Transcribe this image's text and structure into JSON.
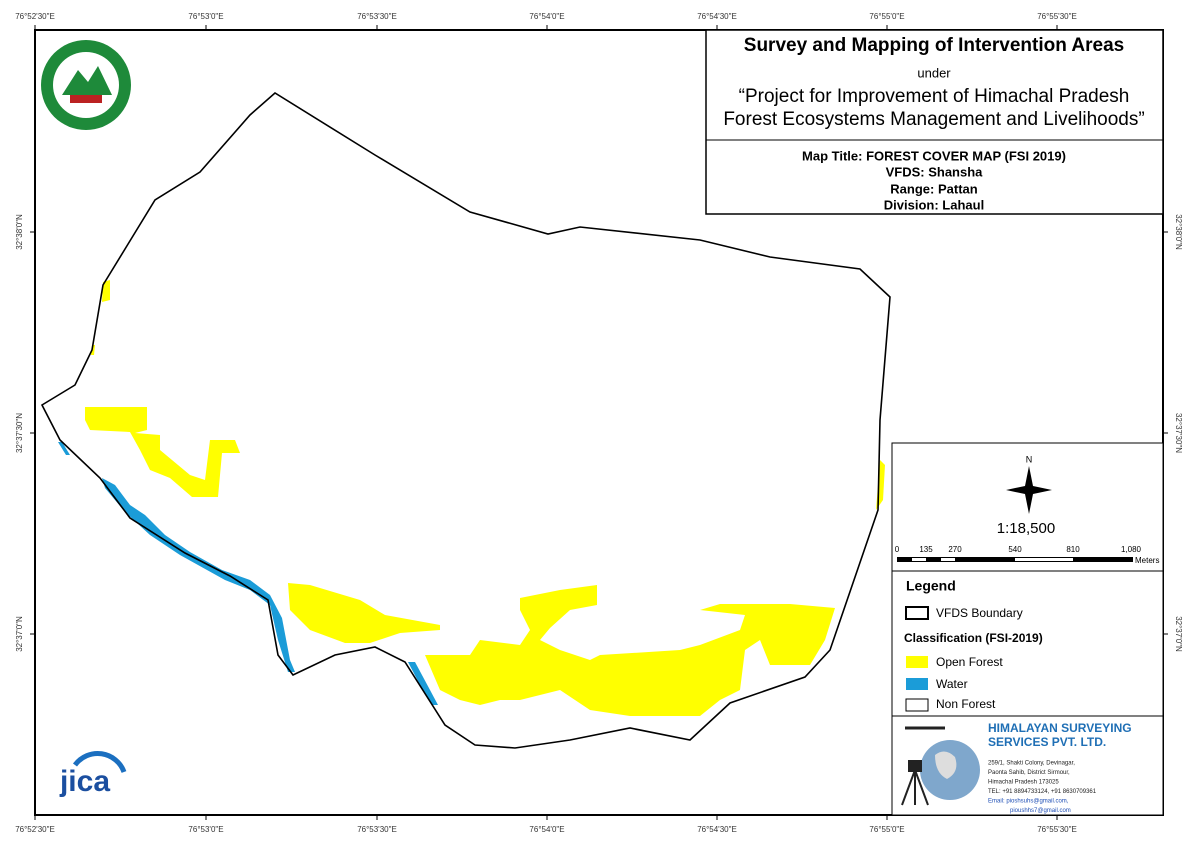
{
  "graticule": {
    "lon_labels": [
      "76°52'30\"E",
      "76°53'0\"E",
      "76°53'30\"E",
      "76°54'0\"E",
      "76°54'30\"E",
      "76°55'0\"E",
      "76°55'30\"E"
    ],
    "lat_labels": [
      "32°38'0\"N",
      "32°37'30\"N",
      "32°37'0\"N"
    ]
  },
  "header": {
    "title": "Survey and Mapping of Intervention Areas",
    "under": "under",
    "project_line1": "“Project for Improvement of Himachal Pradesh",
    "project_line2": "Forest Ecosystems Management and Livelihoods”"
  },
  "map_info": {
    "map_title": "Map Title: FOREST COVER MAP (FSI 2019)",
    "vfds": "VFDS: Shansha",
    "range": "Range: Pattan",
    "division": "Division: Lahaul"
  },
  "scale": {
    "north": "N",
    "ratio": "1:18,500",
    "labels": [
      "0",
      "135",
      "270",
      "540",
      "810",
      "1,080"
    ],
    "unit": "Meters"
  },
  "legend": {
    "title": "Legend",
    "boundary": "VFDS Boundary",
    "classification": "Classification (FSI-2019)",
    "items": [
      "Open Forest",
      "Water",
      "Non Forest"
    ]
  },
  "company": {
    "name_line1": "HIMALAYAN SURVEYING",
    "name_line2": "SERVICES PVT. LTD.",
    "address": [
      "259/1, Shakti Colony, Devinagar,",
      "Paonta Sahib, District Sirmour,",
      "Himachal Pradesh 173025",
      "TEL: +91 8894733124, +91 8630709361",
      "Email: pioshsuhs@gmail.com,",
      "pioushhs7@gmail.com"
    ]
  },
  "logo": {
    "jica": "jica"
  }
}
